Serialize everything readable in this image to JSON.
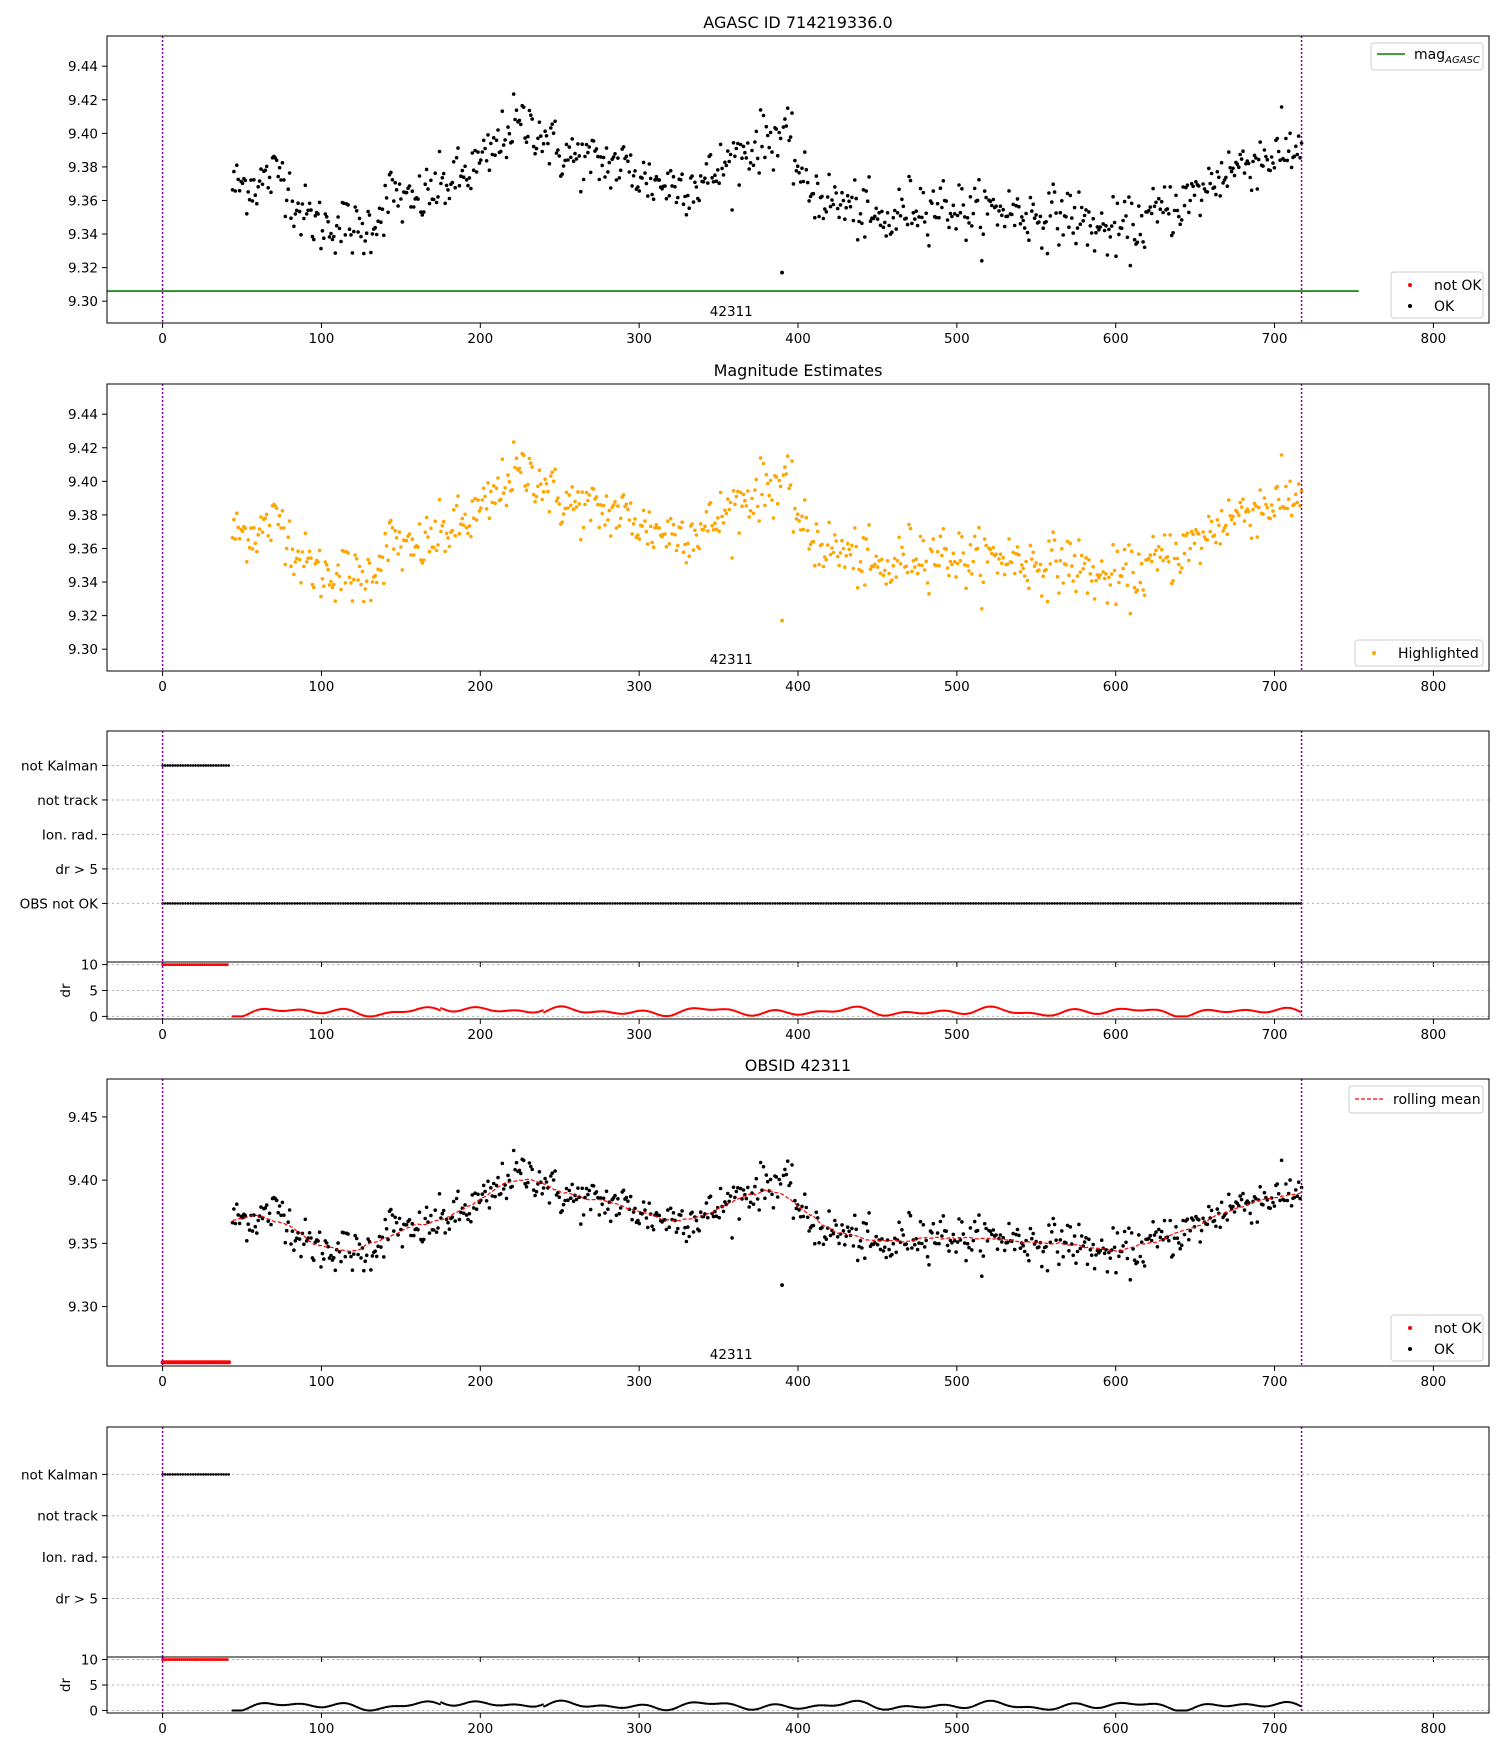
{
  "chart_data": [
    {
      "type": "scatter",
      "title": "AGASC ID 714219336.0",
      "xlim": [
        -35,
        835
      ],
      "ylim": [
        9.287,
        9.458
      ],
      "x_ticks": [
        0,
        100,
        200,
        300,
        400,
        500,
        600,
        700,
        800
      ],
      "y_ticks": [
        9.3,
        9.32,
        9.34,
        9.36,
        9.38,
        9.4,
        9.42,
        9.44
      ],
      "vlines": [
        0,
        717
      ],
      "hline": {
        "name": "mag$_{AGASC}$",
        "label_main": "mag",
        "label_sub": "AGASC",
        "y": 9.306,
        "x_range": [
          -35,
          753
        ],
        "color": "#008000"
      },
      "annotation": {
        "text": "42311",
        "x": 358
      },
      "legend_top": "top-right",
      "legend_bottom": "bottom-right",
      "series": [
        {
          "name": "not OK",
          "color": "#ff0000"
        },
        {
          "name": "OK",
          "color": "#000000"
        }
      ],
      "data_x_range": [
        44,
        717
      ],
      "data_n": 750
    },
    {
      "type": "scatter",
      "title": "Magnitude Estimates",
      "xlim": [
        -35,
        835
      ],
      "ylim": [
        9.287,
        9.458
      ],
      "x_ticks": [
        0,
        100,
        200,
        300,
        400,
        500,
        600,
        700,
        800
      ],
      "y_ticks": [
        9.3,
        9.32,
        9.34,
        9.36,
        9.38,
        9.4,
        9.42,
        9.44
      ],
      "vlines": [
        0,
        717
      ],
      "annotation": {
        "text": "42311",
        "x": 358
      },
      "legend": "bottom-right",
      "series": [
        {
          "name": "Highlighted",
          "color": "#ffa500"
        }
      ]
    },
    {
      "type": "scatter",
      "title": "",
      "xlim": [
        -35,
        835
      ],
      "categories": [
        "not Kalman",
        "not track",
        "Ion. rad.",
        "dr > 5",
        "OBS not OK"
      ],
      "flags": {
        "not Kalman": [
          [
            0,
            42
          ]
        ],
        "OBS not OK": [
          [
            0,
            717
          ]
        ]
      },
      "vlines": [
        0,
        717
      ]
    },
    {
      "type": "scatter",
      "title": "",
      "ylabel": "dr",
      "xlim": [
        -35,
        835
      ],
      "ylim": [
        -0.5,
        10.5
      ],
      "x_ticks": [
        0,
        100,
        200,
        300,
        400,
        500,
        600,
        700,
        800
      ],
      "y_ticks": [
        0,
        5,
        10
      ],
      "clipped_range": [
        0,
        42
      ],
      "clipped_value": 10,
      "color": "#ff0000",
      "vlines": [
        0,
        717
      ]
    },
    {
      "type": "scatter",
      "title": "OBSID 42311",
      "xlim": [
        -35,
        835
      ],
      "ylim": [
        9.253,
        9.48
      ],
      "x_ticks": [
        0,
        100,
        200,
        300,
        400,
        500,
        600,
        700,
        800
      ],
      "y_ticks": [
        9.3,
        9.35,
        9.4,
        9.45
      ],
      "vlines": [
        0,
        717
      ],
      "annotation": {
        "text": "42311",
        "x": 358
      },
      "legend_top": "top-right",
      "legend_bottom": "bottom-right",
      "rolling_mean": {
        "name": "rolling mean",
        "color": "#ff0000"
      },
      "series": [
        {
          "name": "not OK",
          "color": "#ff0000",
          "x_range": [
            0,
            42
          ],
          "value": 9.256
        },
        {
          "name": "OK",
          "color": "#000000"
        }
      ]
    },
    {
      "type": "scatter",
      "title": "",
      "xlim": [
        -35,
        835
      ],
      "categories": [
        "not Kalman",
        "not track",
        "Ion. rad.",
        "dr > 5"
      ],
      "flags": {
        "not Kalman": [
          [
            0,
            42
          ]
        ]
      },
      "vlines": [
        0,
        717
      ]
    },
    {
      "type": "scatter",
      "title": "",
      "ylabel": "dr",
      "xlim": [
        -35,
        835
      ],
      "ylim": [
        -0.5,
        10.5
      ],
      "x_ticks": [
        0,
        100,
        200,
        300,
        400,
        500,
        600,
        700,
        800
      ],
      "y_ticks": [
        0,
        5,
        10
      ],
      "clipped_range": [
        0,
        42
      ],
      "clipped_value": 10,
      "color": "#000000",
      "vlines": [
        0,
        717
      ]
    }
  ],
  "colors": {
    "vline": "#7f00a0",
    "ok": "#000000",
    "not_ok": "#ff0000",
    "highlight": "#ffa500",
    "agasc": "#008000"
  }
}
